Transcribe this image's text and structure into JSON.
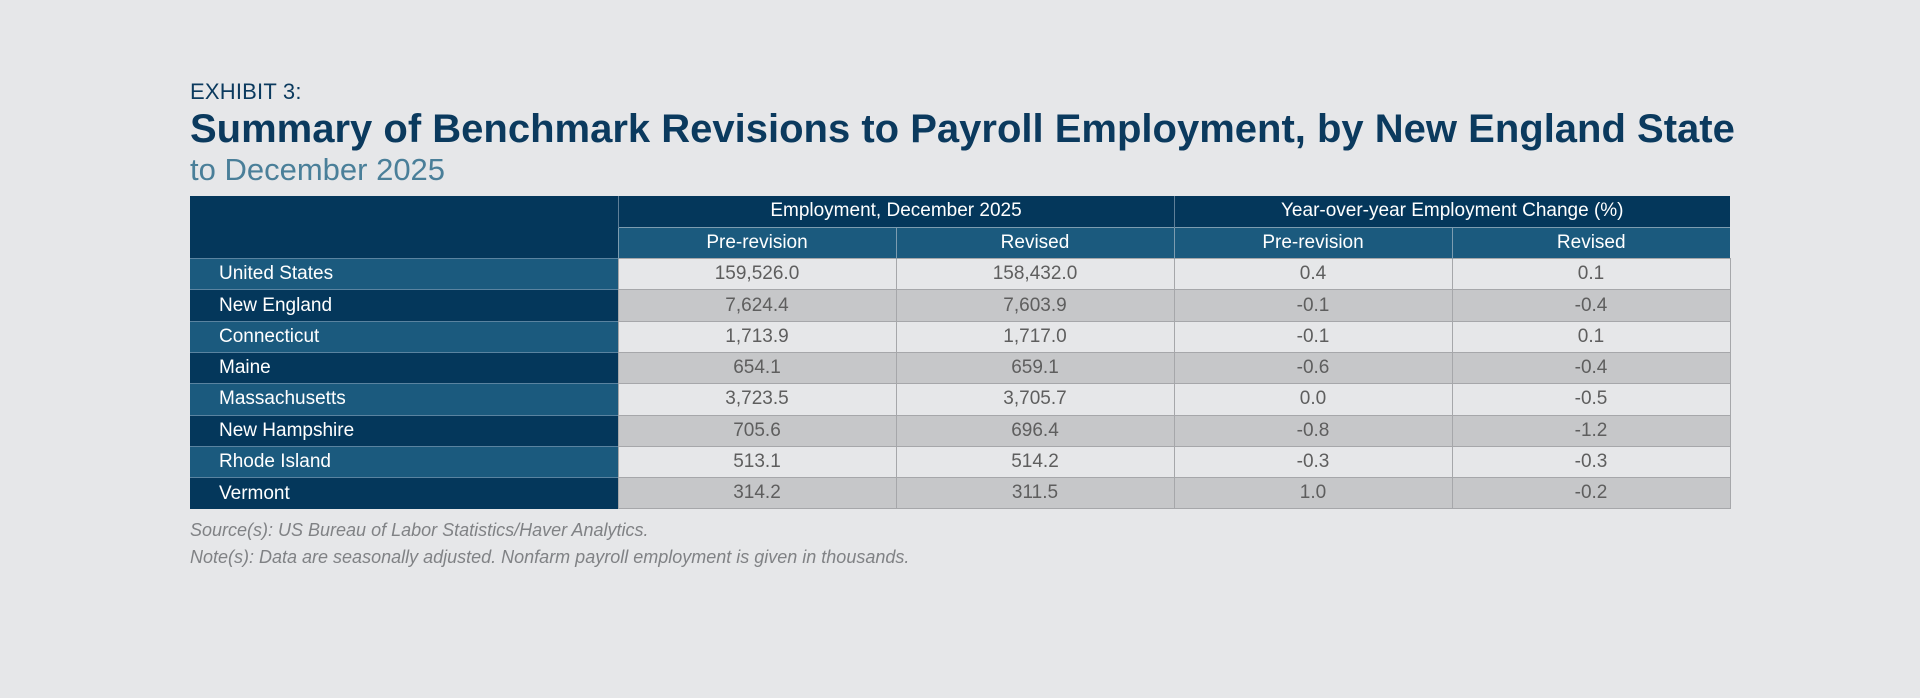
{
  "exhibit": "EXHIBIT 3:",
  "title": "Summary of Benchmark Revisions to Payroll Employment, by New England State",
  "subtitle": "to December 2025",
  "chart_data": {
    "type": "table",
    "column_groups": [
      {
        "label": "Employment, December 2025",
        "columns": [
          "Pre-revision",
          "Revised"
        ]
      },
      {
        "label": "Year-over-year Employment Change (%)",
        "columns": [
          "Pre-revision",
          "Revised"
        ]
      }
    ],
    "rows": [
      {
        "label": "United States",
        "values": [
          "159,526.0",
          "158,432.0",
          "0.4",
          "0.1"
        ]
      },
      {
        "label": "New England",
        "values": [
          "7,624.4",
          "7,603.9",
          "-0.1",
          "-0.4"
        ]
      },
      {
        "label": "Connecticut",
        "values": [
          "1,713.9",
          "1,717.0",
          "-0.1",
          "0.1"
        ]
      },
      {
        "label": "Maine",
        "values": [
          "654.1",
          "659.1",
          "-0.6",
          "-0.4"
        ]
      },
      {
        "label": "Massachusetts",
        "values": [
          "3,723.5",
          "3,705.7",
          "0.0",
          "-0.5"
        ]
      },
      {
        "label": "New Hampshire",
        "values": [
          "705.6",
          "696.4",
          "-0.8",
          "-1.2"
        ]
      },
      {
        "label": "Rhode Island",
        "values": [
          "513.1",
          "514.2",
          "-0.3",
          "-0.3"
        ]
      },
      {
        "label": "Vermont",
        "values": [
          "314.2",
          "311.5",
          "1.0",
          "-0.2"
        ]
      }
    ]
  },
  "source": "Source(s): US Bureau of Labor Statistics/Haver Analytics.",
  "note": "Note(s): Data are seasonally adjusted. Nonfarm payroll employment is given in thousands."
}
